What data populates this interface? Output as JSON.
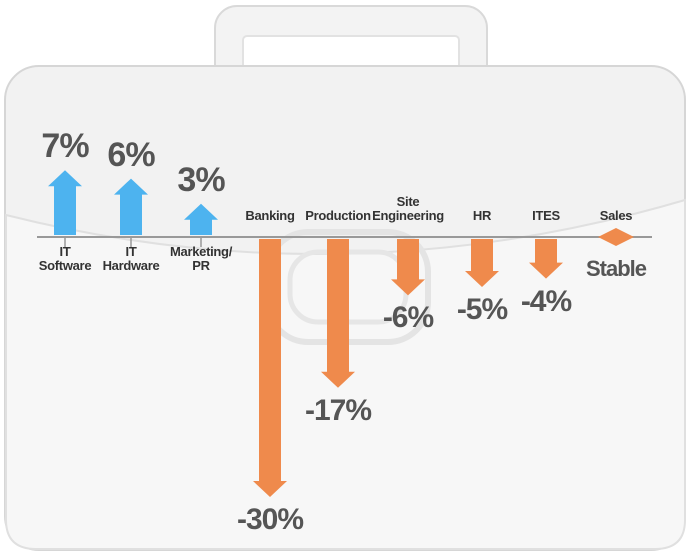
{
  "chart_data": {
    "type": "arrow-bar",
    "categories": [
      "IT Software",
      "IT Hardware",
      "Marketing/ PR",
      "Banking",
      "Production",
      "Site Engineering",
      "HR",
      "ITES",
      "Sales"
    ],
    "values": [
      7,
      6,
      3,
      -30,
      -17,
      -6,
      -5,
      -4,
      0
    ],
    "value_labels": [
      "7%",
      "6%",
      "3%",
      "-30%",
      "-17%",
      "-6%",
      "-5%",
      "-4%",
      "Stable"
    ],
    "colors": {
      "up": "#4db3ef",
      "down": "#ef8a4c",
      "flat": "#ef8a4c"
    }
  }
}
